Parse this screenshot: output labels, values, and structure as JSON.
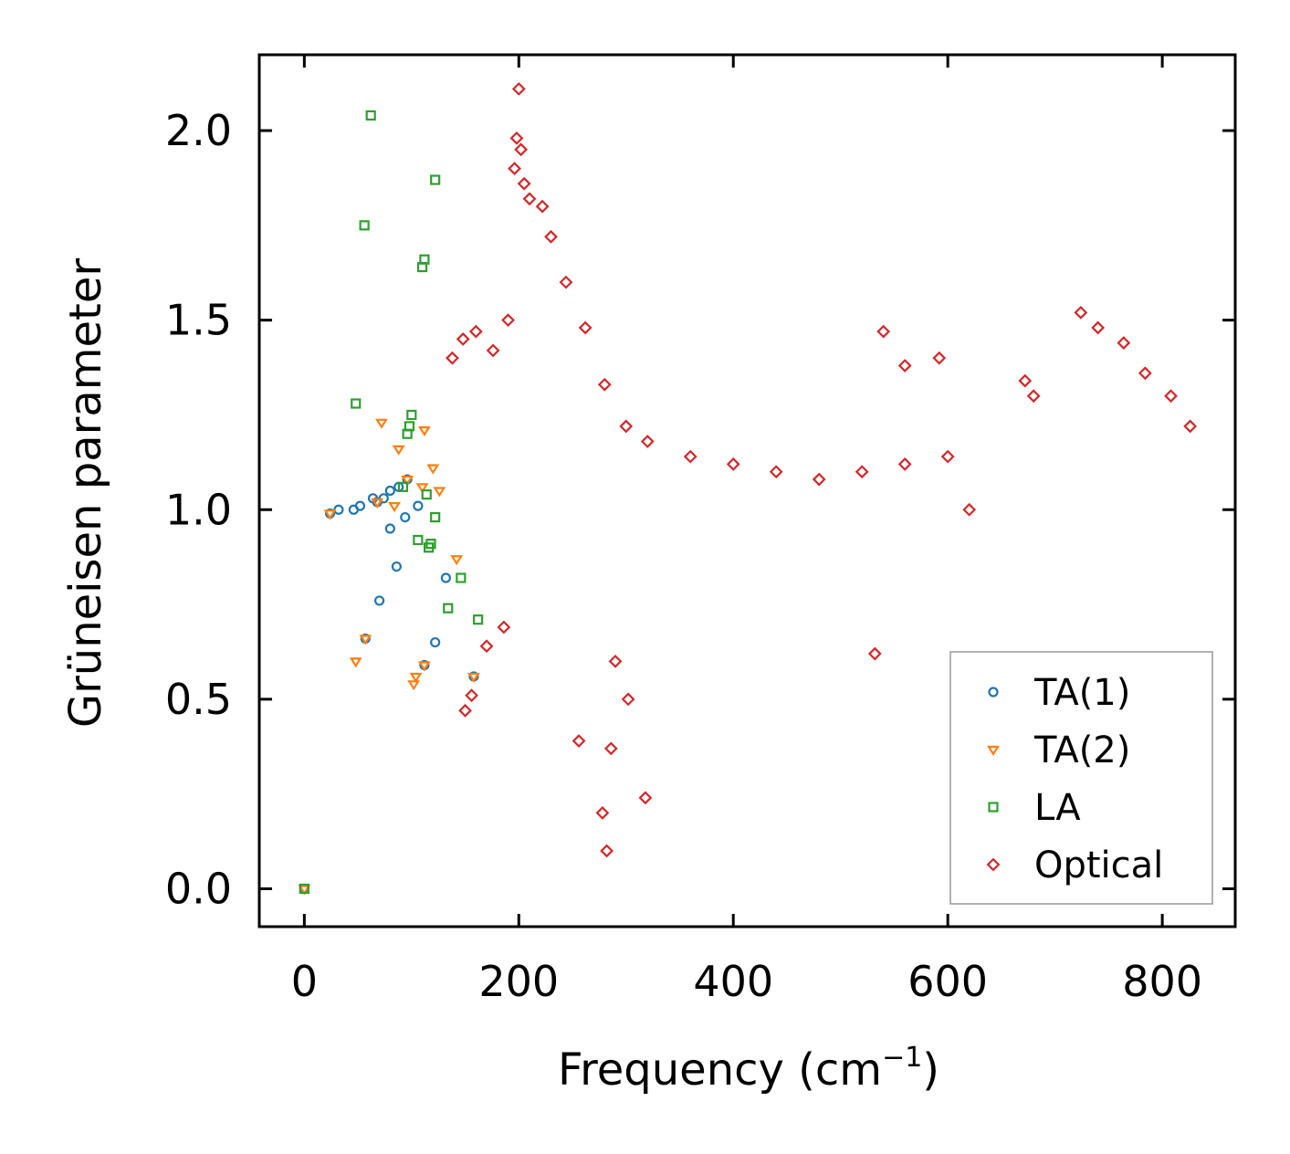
{
  "chart_data": {
    "type": "scatter",
    "xlabel": "Frequency (cm",
    "xlabel_sup": "−1",
    "xlabel_close": ")",
    "ylabel": "Grüneisen parameter",
    "xlim": [
      -42,
      868
    ],
    "ylim": [
      -0.1,
      2.2
    ],
    "xticks": [
      "0",
      "200",
      "400",
      "600",
      "800"
    ],
    "xtick_values": [
      0,
      200,
      400,
      600,
      800
    ],
    "yticks": [
      "0.0",
      "0.5",
      "1.0",
      "1.5",
      "2.0"
    ],
    "ytick_values": [
      0.0,
      0.5,
      1.0,
      1.5,
      2.0
    ],
    "legend_position": "lower-right",
    "series": [
      {
        "name": "TA(1)",
        "marker": "circle",
        "color": "#1f77b4",
        "points": [
          [
            0,
            0
          ],
          [
            24,
            0.99
          ],
          [
            32,
            1.0
          ],
          [
            46,
            1.0
          ],
          [
            52,
            1.01
          ],
          [
            64,
            1.03
          ],
          [
            68,
            1.02
          ],
          [
            74,
            1.03
          ],
          [
            80,
            1.05
          ],
          [
            88,
            1.06
          ],
          [
            96,
            1.08
          ],
          [
            106,
            1.01
          ],
          [
            94,
            0.98
          ],
          [
            80,
            0.95
          ],
          [
            86,
            0.85
          ],
          [
            70,
            0.76
          ],
          [
            57,
            0.66
          ],
          [
            112,
            0.59
          ],
          [
            122,
            0.65
          ],
          [
            132,
            0.82
          ],
          [
            158,
            0.56
          ]
        ]
      },
      {
        "name": "TA(2)",
        "marker": "triangle-down",
        "color": "#ff7f0e",
        "points": [
          [
            0,
            0
          ],
          [
            24,
            0.99
          ],
          [
            48,
            0.6
          ],
          [
            57,
            0.66
          ],
          [
            72,
            1.23
          ],
          [
            68,
            1.02
          ],
          [
            84,
            1.01
          ],
          [
            88,
            1.16
          ],
          [
            96,
            1.08
          ],
          [
            104,
            0.56
          ],
          [
            102,
            0.54
          ],
          [
            112,
            1.21
          ],
          [
            110,
            1.06
          ],
          [
            120,
            1.11
          ],
          [
            126,
            1.05
          ],
          [
            142,
            0.87
          ],
          [
            112,
            0.59
          ],
          [
            158,
            0.56
          ]
        ]
      },
      {
        "name": "LA",
        "marker": "square",
        "color": "#2ca02c",
        "points": [
          [
            0,
            0
          ],
          [
            62,
            2.04
          ],
          [
            56,
            1.75
          ],
          [
            122,
            1.87
          ],
          [
            112,
            1.66
          ],
          [
            110,
            1.64
          ],
          [
            48,
            1.28
          ],
          [
            100,
            1.25
          ],
          [
            98,
            1.22
          ],
          [
            96,
            1.2
          ],
          [
            92,
            1.06
          ],
          [
            114,
            1.04
          ],
          [
            106,
            0.92
          ],
          [
            118,
            0.91
          ],
          [
            116,
            0.9
          ],
          [
            122,
            0.98
          ],
          [
            134,
            0.74
          ],
          [
            146,
            0.82
          ],
          [
            162,
            0.71
          ]
        ]
      },
      {
        "name": "Optical",
        "marker": "diamond",
        "color": "#d62728",
        "points": [
          [
            200,
            2.11
          ],
          [
            198,
            1.98
          ],
          [
            202,
            1.95
          ],
          [
            196,
            1.9
          ],
          [
            205,
            1.86
          ],
          [
            210,
            1.82
          ],
          [
            222,
            1.8
          ],
          [
            230,
            1.72
          ],
          [
            244,
            1.6
          ],
          [
            262,
            1.48
          ],
          [
            280,
            1.33
          ],
          [
            300,
            1.22
          ],
          [
            320,
            1.18
          ],
          [
            360,
            1.14
          ],
          [
            400,
            1.12
          ],
          [
            440,
            1.1
          ],
          [
            480,
            1.08
          ],
          [
            520,
            1.1
          ],
          [
            560,
            1.12
          ],
          [
            600,
            1.14
          ],
          [
            620,
            1.0
          ],
          [
            540,
            1.47
          ],
          [
            560,
            1.38
          ],
          [
            592,
            1.4
          ],
          [
            532,
            0.62
          ],
          [
            302,
            0.5
          ],
          [
            290,
            0.6
          ],
          [
            286,
            0.37
          ],
          [
            282,
            0.1
          ],
          [
            278,
            0.2
          ],
          [
            318,
            0.24
          ],
          [
            256,
            0.39
          ],
          [
            150,
            0.47
          ],
          [
            156,
            0.51
          ],
          [
            160,
            1.47
          ],
          [
            176,
            1.42
          ],
          [
            190,
            1.5
          ],
          [
            138,
            1.4
          ],
          [
            148,
            1.45
          ],
          [
            170,
            0.64
          ],
          [
            186,
            0.69
          ],
          [
            672,
            1.34
          ],
          [
            680,
            1.3
          ],
          [
            724,
            1.52
          ],
          [
            740,
            1.48
          ],
          [
            764,
            1.44
          ],
          [
            784,
            1.36
          ],
          [
            808,
            1.3
          ],
          [
            826,
            1.22
          ]
        ]
      }
    ]
  }
}
